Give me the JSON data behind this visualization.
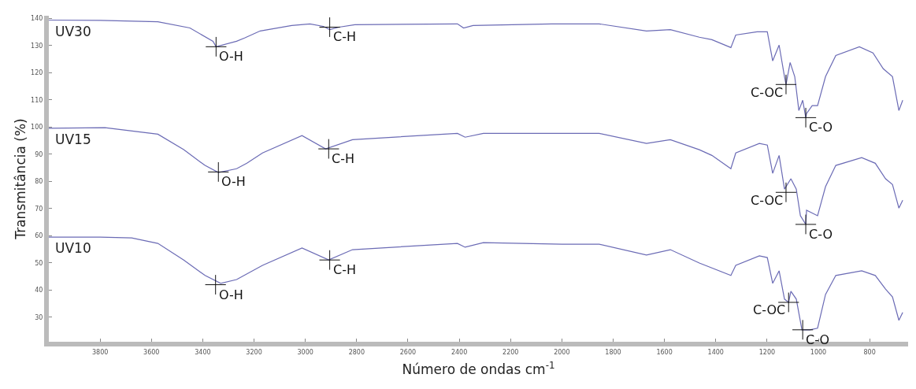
{
  "chart_data": {
    "type": "line",
    "xlabel": "Número de ondas cm$^{-1}$",
    "ylabel": "Transmitância (%)",
    "xlim": [
      4000,
      650
    ],
    "xticks": [
      3800,
      3600,
      3400,
      3200,
      3000,
      2800,
      2600,
      2400,
      2200,
      2000,
      1800,
      1600,
      1400,
      1200,
      1000,
      800
    ],
    "ylim": [
      21,
      141
    ],
    "yticks": [
      30,
      40,
      50,
      60,
      70,
      80,
      90,
      100,
      110,
      120,
      130,
      140
    ],
    "legend": false,
    "marker": "none",
    "line_style": "solid",
    "series": [
      {
        "name": "UV30",
        "color": "#6b6bb5",
        "x": [
          4000,
          3800,
          3575,
          3450,
          3360,
          3348,
          3268,
          3237,
          3176,
          3053,
          2982,
          2930,
          2905,
          2869,
          2807,
          2407,
          2383,
          2346,
          2039,
          1854,
          1670,
          1577,
          1464,
          1415,
          1341,
          1322,
          1239,
          1199,
          1178,
          1153,
          1132,
          1126,
          1110,
          1092,
          1076,
          1061,
          1049,
          1046,
          1024,
          1003,
          972,
          932,
          840,
          787,
          747,
          711,
          686,
          671
        ],
        "values": [
          139.4,
          139.3,
          138.8,
          136.5,
          131.6,
          129.6,
          131.6,
          132.8,
          135.4,
          137.4,
          138,
          137.1,
          135.9,
          136.8,
          137.7,
          138,
          136.5,
          137.4,
          138,
          138,
          135.4,
          135.9,
          133.1,
          132.2,
          129.3,
          133.9,
          135.1,
          135.1,
          124.4,
          130.2,
          118.6,
          115.7,
          123.8,
          118.6,
          106.1,
          109.9,
          103.5,
          105,
          107.9,
          107.9,
          118.6,
          126.4,
          129.6,
          127.3,
          121.5,
          118.6,
          106.1,
          109.9
        ]
      },
      {
        "name": "UV15",
        "color": "#6b6bb5",
        "x": [
          4000,
          3781,
          3575,
          3474,
          3391,
          3339,
          3268,
          3228,
          3167,
          3013,
          2921,
          2816,
          2407,
          2377,
          2306,
          1999,
          1854,
          1670,
          1577,
          1464,
          1415,
          1341,
          1322,
          1230,
          1199,
          1178,
          1153,
          1132,
          1107,
          1086,
          1070,
          1049,
          1046,
          1003,
          972,
          932,
          831,
          778,
          738,
          711,
          686,
          671
        ],
        "values": [
          99.6,
          99.8,
          97.4,
          91.7,
          85.9,
          83.3,
          84.7,
          86.7,
          90.5,
          96.9,
          92,
          95.4,
          97.7,
          96.3,
          97.7,
          97.7,
          97.7,
          94,
          95.4,
          91.7,
          89.6,
          84.7,
          90.5,
          94,
          93.4,
          83,
          89.6,
          77.2,
          81,
          77.2,
          67.4,
          64.2,
          69.4,
          67.4,
          78.1,
          85.9,
          88.8,
          86.7,
          81,
          78.9,
          70.2,
          73.1
        ]
      },
      {
        "name": "UV10",
        "color": "#6b6bb5",
        "x": [
          4000,
          3800,
          3677,
          3575,
          3474,
          3391,
          3330,
          3268,
          3167,
          3013,
          2909,
          2816,
          2407,
          2377,
          2306,
          1999,
          1854,
          1670,
          1577,
          1464,
          1341,
          1322,
          1230,
          1199,
          1178,
          1153,
          1132,
          1116,
          1107,
          1086,
          1064,
          1033,
          1003,
          972,
          932,
          831,
          778,
          738,
          711,
          686,
          671
        ],
        "values": [
          59.5,
          59.5,
          59.2,
          57.2,
          51.1,
          45.4,
          42.5,
          43.9,
          49.1,
          55.5,
          51.1,
          54.9,
          57.2,
          55.8,
          57.5,
          56.9,
          56.9,
          52.9,
          54.9,
          50,
          45.4,
          49.1,
          52.6,
          52,
          42.5,
          47.1,
          36.7,
          35.5,
          39.6,
          36.7,
          25.4,
          25.4,
          26,
          38.4,
          45.4,
          47.1,
          45.4,
          40.4,
          37.5,
          28.9,
          31.8
        ]
      }
    ],
    "annotations": [
      {
        "text": "O-H",
        "x": 3348,
        "y": 129.6
      },
      {
        "text": "C-H",
        "x": 2905,
        "y": 136.8
      },
      {
        "text": "C-OC",
        "x": 1126,
        "y": 115.7
      },
      {
        "text": "C-O",
        "x": 1049,
        "y": 103.5
      },
      {
        "text": "O-H",
        "x": 3339,
        "y": 83.5
      },
      {
        "text": "C-H",
        "x": 2909,
        "y": 92
      },
      {
        "text": "C-OC",
        "x": 1126,
        "y": 76
      },
      {
        "text": "C-O",
        "x": 1049,
        "y": 64.2
      },
      {
        "text": "O-H",
        "x": 3350,
        "y": 42
      },
      {
        "text": "C-H",
        "x": 2905,
        "y": 51.1
      },
      {
        "text": "C-OC",
        "x": 1116,
        "y": 35.5
      },
      {
        "text": "C-O",
        "x": 1061,
        "y": 25.4
      }
    ]
  }
}
